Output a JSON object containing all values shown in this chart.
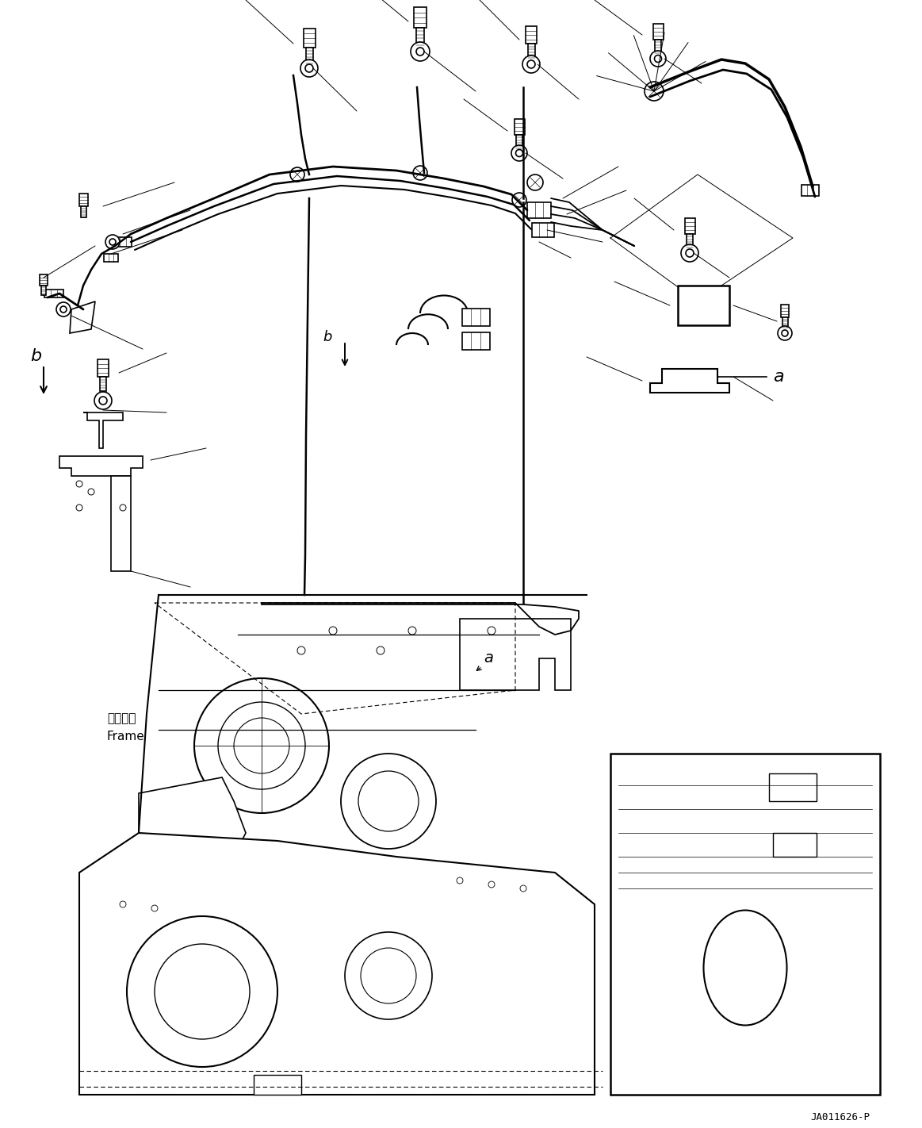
{
  "bg_color": "#ffffff",
  "fig_width": 11.63,
  "fig_height": 14.22,
  "dpi": 100,
  "watermark": "JA011626-P",
  "label_a": "a",
  "label_b": "b",
  "label_frame_jp": "フレーム",
  "label_frame_en": "Frame",
  "lc": "#000000",
  "lw": 1.2,
  "tlw": 0.7
}
